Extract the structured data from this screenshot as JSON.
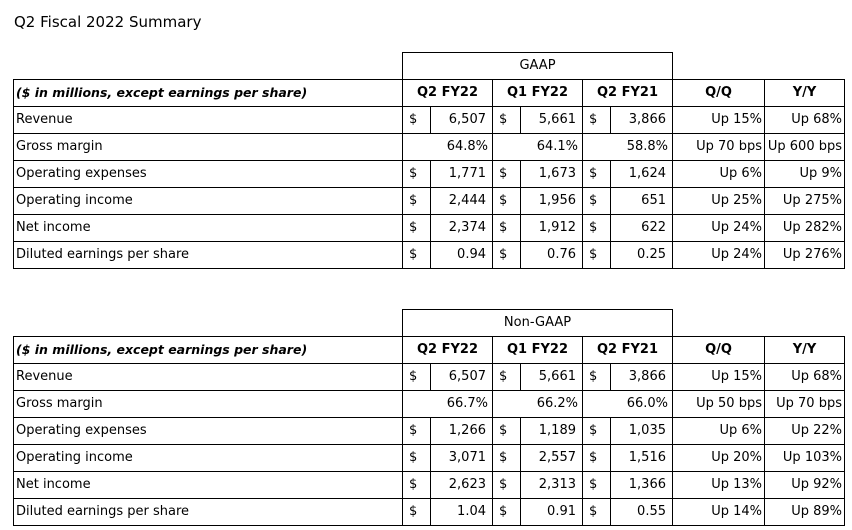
{
  "page_title": "Q2 Fiscal 2022 Summary",
  "header": {
    "unit_note": "($ in millions, except earnings per share)",
    "cols": [
      "Q2 FY22",
      "Q1 FY22",
      "Q2 FY21",
      "Q/Q",
      "Y/Y"
    ]
  },
  "gaap": {
    "caption": "GAAP",
    "rows": [
      {
        "label": "Revenue",
        "c1": "6,507",
        "c2": "5,661",
        "c3": "3,866",
        "qq": "Up 15%",
        "yy": "Up 68%",
        "dollars": [
          "$",
          "$",
          "$"
        ]
      },
      {
        "label": "Gross margin",
        "c1": "64.8%",
        "c2": "64.1%",
        "c3": "58.8%",
        "qq": "Up 70 bps",
        "yy": "Up 600 bps",
        "dollars": [
          "",
          "",
          ""
        ]
      },
      {
        "label": "Operating expenses",
        "c1": "1,771",
        "c2": "1,673",
        "c3": "1,624",
        "qq": "Up 6%",
        "yy": "Up 9%",
        "dollars": [
          "$",
          "$",
          "$"
        ]
      },
      {
        "label": "Operating income",
        "c1": "2,444",
        "c2": "1,956",
        "c3": "651",
        "qq": "Up 25%",
        "yy": "Up 275%",
        "dollars": [
          "$",
          "$",
          "$"
        ]
      },
      {
        "label": "Net income",
        "c1": "2,374",
        "c2": "1,912",
        "c3": "622",
        "qq": "Up 24%",
        "yy": "Up 282%",
        "dollars": [
          "$",
          "$",
          "$"
        ]
      },
      {
        "label": "Diluted earnings per share",
        "c1": "0.94",
        "c2": "0.76",
        "c3": "0.25",
        "qq": "Up 24%",
        "yy": "Up 276%",
        "dollars": [
          "$",
          "$",
          "$"
        ]
      }
    ]
  },
  "nongaap": {
    "caption": "Non-GAAP",
    "rows": [
      {
        "label": "Revenue",
        "c1": "6,507",
        "c2": "5,661",
        "c3": "3,866",
        "qq": "Up 15%",
        "yy": "Up 68%",
        "dollars": [
          "$",
          "$",
          "$"
        ]
      },
      {
        "label": "Gross margin",
        "c1": "66.7%",
        "c2": "66.2%",
        "c3": "66.0%",
        "qq": "Up 50 bps",
        "yy": "Up 70 bps",
        "dollars": [
          "",
          "",
          ""
        ]
      },
      {
        "label": "Operating expenses",
        "c1": "1,266",
        "c2": "1,189",
        "c3": "1,035",
        "qq": "Up 6%",
        "yy": "Up 22%",
        "dollars": [
          "$",
          "$",
          "$"
        ]
      },
      {
        "label": "Operating income",
        "c1": "3,071",
        "c2": "2,557",
        "c3": "1,516",
        "qq": "Up 20%",
        "yy": "Up 103%",
        "dollars": [
          "$",
          "$",
          "$"
        ]
      },
      {
        "label": "Net income",
        "c1": "2,623",
        "c2": "2,313",
        "c3": "1,366",
        "qq": "Up 13%",
        "yy": "Up 92%",
        "dollars": [
          "$",
          "$",
          "$"
        ]
      },
      {
        "label": "Diluted earnings per share",
        "c1": "1.04",
        "c2": "0.91",
        "c3": "0.55",
        "qq": "Up 14%",
        "yy": "Up 89%",
        "dollars": [
          "$",
          "$",
          "$"
        ]
      }
    ]
  }
}
